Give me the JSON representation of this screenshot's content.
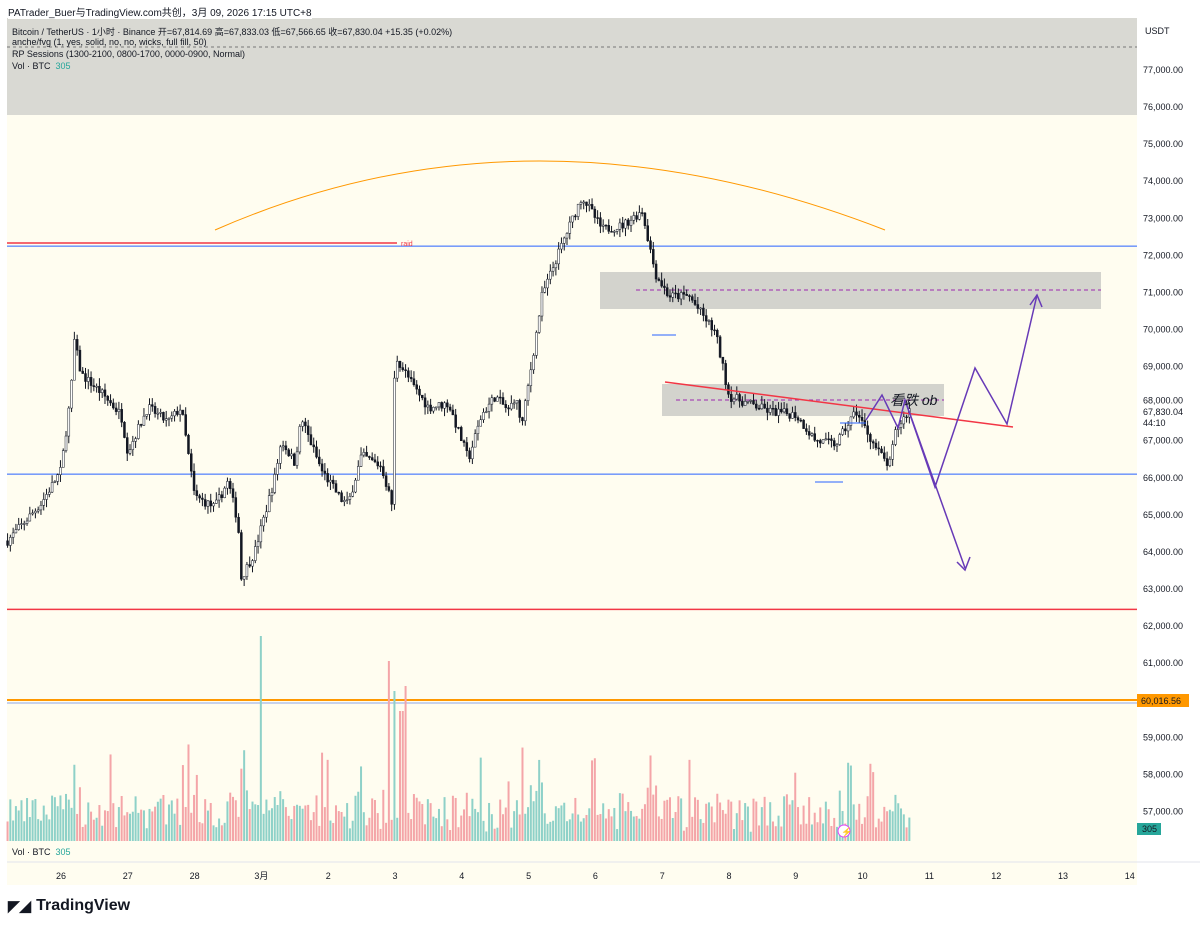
{
  "share_line": "PATrader_Buer与TradingView.com共创，3月 09, 2026 17:15 UTC+8",
  "legend": {
    "symbol_line": "Bitcoin / TetherUS · 1小时 · Binance  开=67,814.69  高=67,833.03  低=67,566.65  收=67,830.04  +15.35 (+0.02%)",
    "indicator1": "anche/fvg (1, yes, solid, no, no, wicks, full fill, 50)",
    "indicator2": "RP Sessions (1300-2100, 0800-1700, 0000-0900, Normal)",
    "vol_label": "Vol · BTC",
    "vol_value": "305"
  },
  "currency": "USDT",
  "price_ticks": [
    "77,000.00",
    "76,000.00",
    "75,000.00",
    "74,000.00",
    "73,000.00",
    "72,000.00",
    "71,000.00",
    "70,000.00",
    "69,000.00",
    "68,000.00",
    "67,000.00",
    "66,000.00",
    "65,000.00",
    "64,000.00",
    "63,000.00",
    "62,000.00",
    "61,000.00",
    "59,000.00",
    "58,000.00",
    "57,000.00"
  ],
  "last_price": "67,830.04",
  "countdown": "44:10",
  "level_label": "60,016.56",
  "vol_badge": "305",
  "date_ticks": [
    "26",
    "27",
    "28",
    "3月",
    "2",
    "3",
    "4",
    "5",
    "6",
    "7",
    "8",
    "9",
    "10",
    "11",
    "12",
    "13",
    "14"
  ],
  "annotations": {
    "raid": "raid",
    "bearish_ob": "看跌 ob"
  },
  "brand": "TradingView",
  "colors": {
    "bg": "#fffdf0",
    "band": "#d9d9d3",
    "red": "#f23645",
    "blue": "#2962ff",
    "orange": "#ff9800",
    "purple": "#673ab7",
    "teal": "#26a69a"
  },
  "chart_data": {
    "type": "candlestick",
    "interval": "1h",
    "ylim": [
      56500,
      77500
    ],
    "price_path": [
      [
        -0.8,
        64300
      ],
      [
        -0.3,
        65300
      ],
      [
        0,
        66200
      ],
      [
        0.15,
        68300
      ],
      [
        0.2,
        69700
      ],
      [
        0.3,
        68800
      ],
      [
        0.6,
        68300
      ],
      [
        0.9,
        67700
      ],
      [
        1.0,
        66700
      ],
      [
        1.3,
        67900
      ],
      [
        1.6,
        67500
      ],
      [
        1.8,
        67900
      ],
      [
        2.0,
        65500
      ],
      [
        2.3,
        65200
      ],
      [
        2.5,
        65900
      ],
      [
        2.65,
        64800
      ],
      [
        2.7,
        63300
      ],
      [
        2.9,
        64000
      ],
      [
        3.2,
        66000
      ],
      [
        3.3,
        67000
      ],
      [
        3.5,
        66400
      ],
      [
        3.6,
        67600
      ],
      [
        3.9,
        66200
      ],
      [
        4.2,
        65400
      ],
      [
        4.3,
        65300
      ],
      [
        4.5,
        66600
      ],
      [
        4.8,
        66300
      ],
      [
        4.95,
        65300
      ],
      [
        5.0,
        69300
      ],
      [
        5.3,
        68400
      ],
      [
        5.5,
        67900
      ],
      [
        5.8,
        68000
      ],
      [
        6.1,
        66500
      ],
      [
        6.3,
        67700
      ],
      [
        6.5,
        68200
      ],
      [
        6.7,
        67800
      ],
      [
        6.8,
        68200
      ],
      [
        6.9,
        67400
      ],
      [
        7.1,
        69700
      ],
      [
        7.2,
        70900
      ],
      [
        7.5,
        72300
      ],
      [
        7.8,
        73600
      ],
      [
        8.1,
        72700
      ],
      [
        8.4,
        72800
      ],
      [
        8.7,
        73200
      ],
      [
        8.9,
        71500
      ],
      [
        9.1,
        70900
      ],
      [
        9.4,
        70900
      ],
      [
        9.8,
        69900
      ],
      [
        10.0,
        68200
      ],
      [
        10.3,
        68000
      ],
      [
        10.6,
        67800
      ],
      [
        11.0,
        67700
      ],
      [
        11.3,
        67000
      ],
      [
        11.6,
        66900
      ],
      [
        11.9,
        67800
      ],
      [
        12.2,
        66800
      ],
      [
        12.4,
        66300
      ],
      [
        12.5,
        67300
      ],
      [
        12.7,
        67830
      ]
    ],
    "levels": {
      "upper_blue": 72250,
      "lower_blue": 66100,
      "red_low": 62450,
      "orange": 60016.56,
      "raid": 72350
    },
    "ob_zones": [
      [
        70600,
        71550
      ],
      [
        67800,
        68550
      ]
    ]
  }
}
